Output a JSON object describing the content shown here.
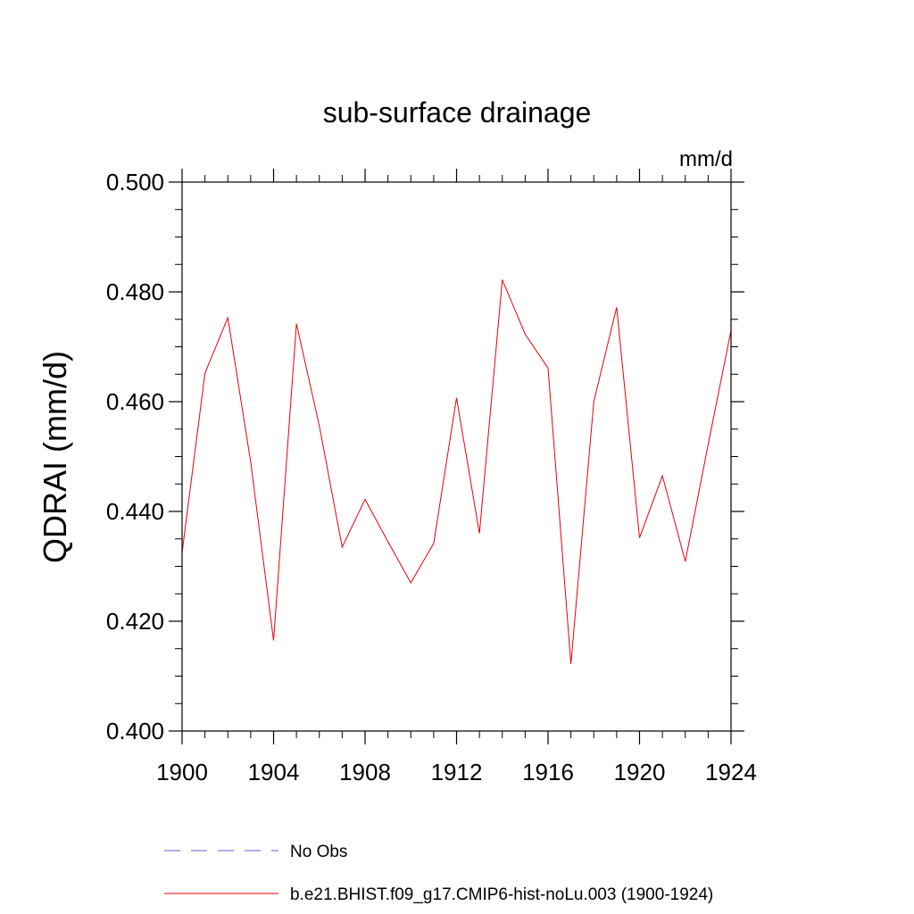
{
  "chart_data": {
    "type": "line",
    "title": "sub-surface drainage",
    "units": "mm/d",
    "ylabel": "QDRAI  (mm/d)",
    "xlabel": "",
    "xlim": [
      1900,
      1924
    ],
    "ylim": [
      0.4,
      0.5
    ],
    "x_ticks": [
      1900,
      1904,
      1908,
      1912,
      1916,
      1920,
      1924
    ],
    "x_tick_labels": [
      "1900",
      "1904",
      "1908",
      "1912",
      "1916",
      "1920",
      "1924"
    ],
    "y_ticks": [
      0.4,
      0.42,
      0.44,
      0.46,
      0.48,
      0.5
    ],
    "y_tick_labels": [
      "0.400",
      "0.420",
      "0.440",
      "0.460",
      "0.480",
      "0.500"
    ],
    "grid": false,
    "legend_position": "bottom",
    "series": [
      {
        "name": "b.e21.BHIST.f09_g17.CMIP6-hist-noLu.003 (1900-1924)",
        "color": "#e8000b",
        "x": [
          1900,
          1901,
          1902,
          1903,
          1904,
          1905,
          1906,
          1907,
          1908,
          1909,
          1910,
          1911,
          1912,
          1913,
          1914,
          1915,
          1916,
          1917,
          1918,
          1919,
          1920,
          1921,
          1922,
          1923,
          1924
        ],
        "y": [
          0.4325,
          0.4652,
          0.4753,
          0.449,
          0.4165,
          0.4742,
          0.4556,
          0.4335,
          0.4422,
          0.4345,
          0.427,
          0.4342,
          0.4607,
          0.436,
          0.4822,
          0.4723,
          0.4661,
          0.4122,
          0.46,
          0.4772,
          0.4352,
          0.4465,
          0.4309,
          0.4522,
          0.473
        ]
      }
    ],
    "legend": [
      {
        "label": "No Obs",
        "color": "#6a5acd",
        "style": "dashed"
      },
      {
        "label": "b.e21.BHIST.f09_g17.CMIP6-hist-noLu.003 (1900-1924)",
        "color": "#e8000b",
        "style": "solid"
      }
    ]
  }
}
